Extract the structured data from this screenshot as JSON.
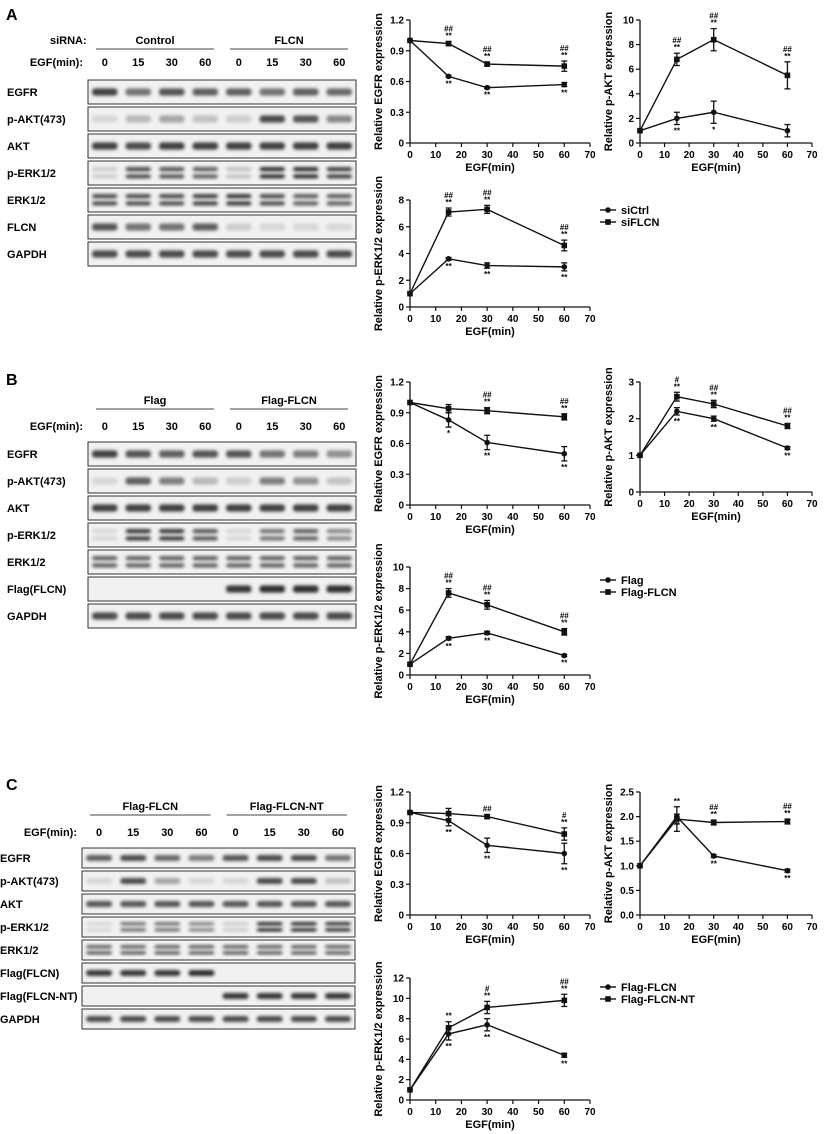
{
  "panels": [
    {
      "letter": "A",
      "header_label": "siRNA:",
      "groups": [
        "Control",
        "FLCN"
      ],
      "time_label": "EGF(min):",
      "times": [
        "0",
        "15",
        "30",
        "60",
        "0",
        "15",
        "30",
        "60"
      ],
      "rows": [
        "EGFR",
        "p-AKT(473)",
        "AKT",
        "p-ERK1/2",
        "ERK1/2",
        "FLCN",
        "GAPDH"
      ],
      "legend": [
        "siCtrl",
        "siFLCN"
      ]
    },
    {
      "letter": "B",
      "header_label": "",
      "groups": [
        "Flag",
        "Flag-FLCN"
      ],
      "time_label": "EGF(min):",
      "times": [
        "0",
        "15",
        "30",
        "60",
        "0",
        "15",
        "30",
        "60"
      ],
      "rows": [
        "EGFR",
        "p-AKT(473)",
        "AKT",
        "p-ERK1/2",
        "ERK1/2",
        "Flag(FLCN)",
        "GAPDH"
      ],
      "legend": [
        "Flag",
        "Flag-FLCN"
      ]
    },
    {
      "letter": "C",
      "header_label": "",
      "groups": [
        "Flag-FLCN",
        "Flag-FLCN-NT"
      ],
      "time_label": "EGF(min):",
      "times": [
        "0",
        "15",
        "30",
        "60",
        "0",
        "15",
        "30",
        "60"
      ],
      "rows": [
        "EGFR",
        "p-AKT(473)",
        "AKT",
        "p-ERK1/2",
        "ERK1/2",
        "Flag(FLCN)",
        "Flag(FLCN-NT)",
        "GAPDH"
      ],
      "legend": [
        "Flag-FLCN",
        "Flag-FLCN-NT"
      ]
    }
  ],
  "chart_data": [
    {
      "id": "A-EGFR",
      "type": "line",
      "xlabel": "EGF(min)",
      "ylabel": "Relative EGFR expression",
      "xlim": [
        0,
        70
      ],
      "xticks": [
        0,
        10,
        20,
        30,
        40,
        50,
        60,
        70
      ],
      "ylim": [
        0,
        1.2
      ],
      "yticks": [
        "0",
        "0.3",
        "0.6",
        "0.9",
        "1.2"
      ],
      "x": [
        0,
        15,
        30,
        60
      ],
      "series": [
        {
          "marker": "circle",
          "values": [
            1.0,
            0.65,
            0.54,
            0.57
          ],
          "err": [
            0,
            0.01,
            0.01,
            0.02
          ],
          "sig": [
            "",
            "**",
            "**",
            "**"
          ]
        },
        {
          "marker": "square",
          "values": [
            1.0,
            0.97,
            0.77,
            0.75
          ],
          "err": [
            0,
            0.02,
            0.02,
            0.05
          ],
          "sig": [
            "",
            "##\n**",
            "##\n**",
            "##\n**"
          ]
        }
      ]
    },
    {
      "id": "A-pAKT",
      "type": "line",
      "xlabel": "EGF(min)",
      "ylabel": "Relative p-AKT expression",
      "xlim": [
        0,
        70
      ],
      "xticks": [
        0,
        10,
        20,
        30,
        40,
        50,
        60,
        70
      ],
      "ylim": [
        0,
        10
      ],
      "yticks": [
        "0",
        "2",
        "4",
        "6",
        "8",
        "10"
      ],
      "x": [
        0,
        15,
        30,
        60
      ],
      "series": [
        {
          "marker": "circle",
          "values": [
            1.0,
            2.0,
            2.5,
            1.0
          ],
          "err": [
            0,
            0.5,
            0.9,
            0.5
          ],
          "sig": [
            "",
            "**",
            "*",
            ""
          ]
        },
        {
          "marker": "square",
          "values": [
            1.0,
            6.8,
            8.4,
            5.5
          ],
          "err": [
            0,
            0.5,
            0.9,
            1.1
          ],
          "sig": [
            "",
            "##\n**",
            "##\n**",
            "##\n**"
          ]
        }
      ]
    },
    {
      "id": "A-pERK",
      "type": "line",
      "xlabel": "EGF(min)",
      "ylabel": "Relative p-ERK1/2 expression",
      "xlim": [
        0,
        70
      ],
      "xticks": [
        0,
        10,
        20,
        30,
        40,
        50,
        60,
        70
      ],
      "ylim": [
        0,
        8
      ],
      "yticks": [
        "0",
        "2",
        "4",
        "6",
        "8"
      ],
      "x": [
        0,
        15,
        30,
        60
      ],
      "series": [
        {
          "marker": "circle",
          "values": [
            1.0,
            3.6,
            3.1,
            3.0
          ],
          "err": [
            0,
            0.1,
            0.2,
            0.3
          ],
          "sig": [
            "",
            "**",
            "**",
            "**"
          ]
        },
        {
          "marker": "square",
          "values": [
            1.0,
            7.1,
            7.3,
            4.6
          ],
          "err": [
            0,
            0.3,
            0.3,
            0.4
          ],
          "sig": [
            "",
            "##\n**",
            "##\n**",
            "##\n**"
          ]
        }
      ]
    },
    {
      "id": "B-EGFR",
      "type": "line",
      "xlabel": "EGF(min)",
      "ylabel": "Relative EGFR expression",
      "xlim": [
        0,
        70
      ],
      "xticks": [
        0,
        10,
        20,
        30,
        40,
        50,
        60,
        70
      ],
      "ylim": [
        0,
        1.2
      ],
      "yticks": [
        "0",
        "0.3",
        "0.6",
        "0.9",
        "1.2"
      ],
      "x": [
        0,
        15,
        30,
        60
      ],
      "series": [
        {
          "marker": "circle",
          "values": [
            1.0,
            0.83,
            0.61,
            0.5
          ],
          "err": [
            0,
            0.07,
            0.07,
            0.07
          ],
          "sig": [
            "",
            "*",
            "**",
            "**"
          ]
        },
        {
          "marker": "square",
          "values": [
            1.0,
            0.94,
            0.92,
            0.86
          ],
          "err": [
            0,
            0.04,
            0.03,
            0.03
          ],
          "sig": [
            "",
            "",
            "##\n**",
            "##\n**"
          ]
        }
      ]
    },
    {
      "id": "B-pAKT",
      "type": "line",
      "xlabel": "EGF(min)",
      "ylabel": "Relative p-AKT expression",
      "xlim": [
        0,
        70
      ],
      "xticks": [
        0,
        10,
        20,
        30,
        40,
        50,
        60,
        70
      ],
      "ylim": [
        0,
        3
      ],
      "yticks": [
        "0",
        "1",
        "2",
        "3"
      ],
      "x": [
        0,
        15,
        30,
        60
      ],
      "series": [
        {
          "marker": "circle",
          "values": [
            1.0,
            2.2,
            2.0,
            1.2
          ],
          "err": [
            0,
            0.1,
            0.07,
            0.04
          ],
          "sig": [
            "",
            "**",
            "**",
            "**"
          ]
        },
        {
          "marker": "square",
          "values": [
            1.0,
            2.6,
            2.4,
            1.8
          ],
          "err": [
            0,
            0.12,
            0.1,
            0.07
          ],
          "sig": [
            "",
            "#\n**",
            "##\n**",
            "##\n**"
          ]
        }
      ]
    },
    {
      "id": "B-pERK",
      "type": "line",
      "xlabel": "EGF(min)",
      "ylabel": "Relative p-ERK1/2 expression",
      "xlim": [
        0,
        70
      ],
      "xticks": [
        0,
        10,
        20,
        30,
        40,
        50,
        60,
        70
      ],
      "ylim": [
        0,
        10
      ],
      "yticks": [
        "0",
        "2",
        "4",
        "6",
        "8",
        "10"
      ],
      "x": [
        0,
        15,
        30,
        60
      ],
      "series": [
        {
          "marker": "circle",
          "values": [
            1.0,
            3.4,
            3.9,
            1.8
          ],
          "err": [
            0,
            0.15,
            0.15,
            0.1
          ],
          "sig": [
            "",
            "**",
            "**",
            "**"
          ]
        },
        {
          "marker": "square",
          "values": [
            1.0,
            7.6,
            6.5,
            4.0
          ],
          "err": [
            0,
            0.4,
            0.4,
            0.3
          ],
          "sig": [
            "",
            "##\n**",
            "##\n**",
            "##\n**"
          ]
        }
      ]
    },
    {
      "id": "C-EGFR",
      "type": "line",
      "xlabel": "EGF(min)",
      "ylabel": "Relative EGFR expression",
      "xlim": [
        0,
        70
      ],
      "xticks": [
        0,
        10,
        20,
        30,
        40,
        50,
        60,
        70
      ],
      "ylim": [
        0,
        1.2
      ],
      "yticks": [
        "0",
        "0.3",
        "0.6",
        "0.9",
        "1.2"
      ],
      "x": [
        0,
        15,
        30,
        60
      ],
      "series": [
        {
          "marker": "circle",
          "values": [
            1.0,
            0.92,
            0.68,
            0.6
          ],
          "err": [
            0,
            0.05,
            0.07,
            0.1
          ],
          "sig": [
            "",
            "**",
            "**",
            "**"
          ]
        },
        {
          "marker": "square",
          "values": [
            1.0,
            0.99,
            0.96,
            0.79
          ],
          "err": [
            0,
            0.05,
            0.02,
            0.06
          ],
          "sig": [
            "",
            "",
            "##",
            "#\n**"
          ]
        }
      ]
    },
    {
      "id": "C-pAKT",
      "type": "line",
      "xlabel": "EGF(min)",
      "ylabel": "Relative p-AKT expression",
      "xlim": [
        0,
        70
      ],
      "xticks": [
        0,
        10,
        20,
        30,
        40,
        50,
        60,
        70
      ],
      "ylim": [
        0,
        2.5
      ],
      "yticks": [
        "0.0",
        "0.5",
        "1.0",
        "1.5",
        "2.0",
        "2.5"
      ],
      "x": [
        0,
        15,
        30,
        60
      ],
      "series": [
        {
          "marker": "circle",
          "values": [
            1.0,
            2.0,
            1.2,
            0.9
          ],
          "err": [
            0,
            0.05,
            0.03,
            0.03
          ],
          "sig": [
            "",
            "**",
            "**",
            "**"
          ]
        },
        {
          "marker": "square",
          "values": [
            1.0,
            1.95,
            1.88,
            1.9
          ],
          "err": [
            0,
            0.25,
            0.05,
            0.05
          ],
          "sig": [
            "",
            "**",
            "##\n**",
            "##\n**"
          ]
        }
      ]
    },
    {
      "id": "C-pERK",
      "type": "line",
      "xlabel": "EGF(min)",
      "ylabel": "Relative p-ERK1/2 expression",
      "xlim": [
        0,
        70
      ],
      "xticks": [
        0,
        10,
        20,
        30,
        40,
        50,
        60,
        70
      ],
      "ylim": [
        0,
        12
      ],
      "yticks": [
        "0",
        "2",
        "4",
        "6",
        "8",
        "10",
        "12"
      ],
      "x": [
        0,
        15,
        30,
        60
      ],
      "series": [
        {
          "marker": "circle",
          "values": [
            1.0,
            6.5,
            7.4,
            4.4
          ],
          "err": [
            0,
            0.6,
            0.6,
            0.2
          ],
          "sig": [
            "",
            "**",
            "**",
            "**"
          ]
        },
        {
          "marker": "square",
          "values": [
            1.0,
            7.1,
            9.1,
            9.8
          ],
          "err": [
            0,
            0.6,
            0.6,
            0.6
          ],
          "sig": [
            "",
            "**",
            "#\n**",
            "##\n**"
          ]
        }
      ]
    }
  ]
}
